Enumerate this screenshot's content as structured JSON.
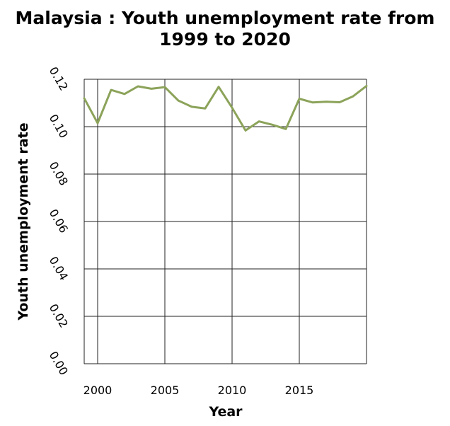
{
  "chart_data": {
    "type": "line",
    "title_lines": [
      "Malaysia : Youth unemployment rate from",
      "1999 to 2020"
    ],
    "xlabel": "Year",
    "ylabel": "Youth unemployment rate",
    "xlim": [
      1999,
      2020
    ],
    "ylim": [
      0,
      0.12
    ],
    "x_ticks": [
      2000,
      2005,
      2010,
      2015
    ],
    "x_tick_labels": [
      "2000",
      "2005",
      "2010",
      "2015"
    ],
    "y_ticks": [
      0,
      0.02,
      0.04,
      0.06,
      0.08,
      0.1,
      0.12
    ],
    "y_tick_labels": [
      "0.00",
      "0.02",
      "0.04",
      "0.06",
      "0.08",
      "0.10",
      "0.12"
    ],
    "grid": true,
    "line_color": "#8ca35a",
    "series": [
      {
        "name": "Youth unemployment rate",
        "x": [
          1999,
          2000,
          2001,
          2002,
          2003,
          2004,
          2005,
          2006,
          2007,
          2008,
          2009,
          2010,
          2011,
          2012,
          2013,
          2014,
          2015,
          2016,
          2017,
          2018,
          2019,
          2020
        ],
        "values": [
          0.112,
          0.1015,
          0.1155,
          0.1138,
          0.117,
          0.116,
          0.1167,
          0.111,
          0.1084,
          0.1077,
          0.1168,
          0.108,
          0.0984,
          0.1022,
          0.1008,
          0.099,
          0.1118,
          0.1102,
          0.1105,
          0.1103,
          0.1128,
          0.1172
        ]
      }
    ]
  }
}
